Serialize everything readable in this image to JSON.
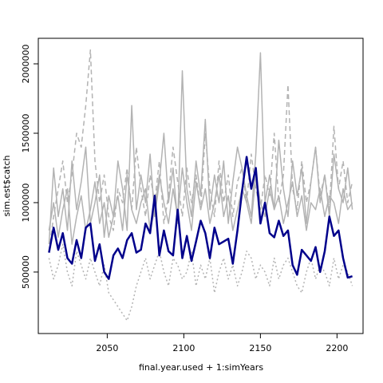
{
  "chart_data": {
    "type": "line",
    "x_label": "final.year.used + 1:simYears",
    "y_label": "sim.est$catch",
    "x": [
      2012,
      2015,
      2018,
      2021,
      2024,
      2027,
      2030,
      2033,
      2036,
      2039,
      2042,
      2045,
      2048,
      2051,
      2054,
      2057,
      2060,
      2063,
      2066,
      2069,
      2072,
      2075,
      2078,
      2081,
      2084,
      2087,
      2090,
      2093,
      2096,
      2099,
      2102,
      2105,
      2108,
      2111,
      2114,
      2117,
      2120,
      2123,
      2126,
      2129,
      2132,
      2135,
      2138,
      2141,
      2144,
      2147,
      2150,
      2153,
      2156,
      2159,
      2162,
      2165,
      2168,
      2171,
      2174,
      2177,
      2180,
      2183,
      2186,
      2189,
      2192,
      2195,
      2198,
      2201,
      2204,
      2207,
      2210
    ],
    "xlim": [
      2005,
      2217
    ],
    "xticks": [
      2050,
      2100,
      2150,
      2200
    ],
    "ylim": [
      57000,
      2184000
    ],
    "yticks": [
      500000,
      1000000,
      1500000,
      2000000
    ],
    "series": [
      {
        "color": "#b3b3b3",
        "dash": "solid",
        "values": [
          700000,
          1250000,
          900000,
          1100000,
          800000,
          1300000,
          950000,
          1150000,
          1400000,
          850000,
          1000000,
          1200000,
          750000,
          1050000,
          900000,
          1300000,
          1100000,
          800000,
          1700000,
          950000,
          1200000,
          1000000,
          1350000,
          900000,
          1150000,
          1500000,
          1000000,
          1250000,
          850000,
          1950000,
          1100000,
          900000,
          1300000,
          1050000,
          1600000,
          950000,
          1200000,
          1000000,
          1300000,
          850000,
          1150000,
          1400000,
          1250000,
          1050000,
          900000,
          1350000,
          2080000,
          1000000,
          1200000,
          950000,
          1450000,
          1100000,
          900000,
          1300000,
          1050000,
          1250000,
          850000,
          1150000,
          1400000,
          1000000,
          1200000,
          900000,
          1350000,
          1100000,
          1000000,
          1250000,
          950000
        ]
      },
      {
        "color": "#b3b3b3",
        "dash": "dashed",
        "values": [
          650000,
          900000,
          1100000,
          1300000,
          1000000,
          1200000,
          1500000,
          1400000,
          1700000,
          2100000,
          1300000,
          1000000,
          1200000,
          900000,
          800000,
          1100000,
          1000000,
          1250000,
          950000,
          1400000,
          1100000,
          900000,
          1200000,
          1000000,
          1300000,
          850000,
          1050000,
          1400000,
          1150000,
          900000,
          1250000,
          1000000,
          1200000,
          950000,
          1500000,
          1100000,
          900000,
          1300000,
          1000000,
          1200000,
          900000,
          1150000,
          1250000,
          1000000,
          1350000,
          1100000,
          950000,
          1200000,
          1050000,
          1500000,
          1000000,
          1200000,
          1850000,
          1100000,
          950000,
          1300000,
          1000000,
          1150000,
          1400000,
          1050000,
          1200000,
          950000,
          1550000,
          1100000,
          1300000,
          1000000,
          1150000
        ]
      },
      {
        "color": "#b3b3b3",
        "dash": "dotted",
        "values": [
          600000,
          450000,
          550000,
          700000,
          500000,
          400000,
          650000,
          550000,
          450000,
          600000,
          500000,
          400000,
          550000,
          350000,
          300000,
          250000,
          200000,
          150000,
          250000,
          400000,
          500000,
          600000,
          450000,
          550000,
          650000,
          500000,
          400000,
          600000,
          550000,
          450000,
          500000,
          650000,
          400000,
          550000,
          450000,
          600000,
          350000,
          500000,
          600000,
          450000,
          550000,
          400000,
          500000,
          650000,
          600000,
          450000,
          550000,
          500000,
          400000,
          600000,
          450000,
          550000,
          600000,
          500000,
          400000,
          350000,
          500000,
          600000,
          450000,
          550000,
          500000,
          400000,
          600000,
          450000,
          550000,
          500000,
          400000
        ]
      },
      {
        "color": "#b3b3b3",
        "dash": "solid",
        "values": [
          800000,
          1000000,
          750000,
          950000,
          1100000,
          700000,
          900000,
          1050000,
          800000,
          950000,
          1150000,
          850000,
          1000000,
          750000,
          900000,
          1050000,
          800000,
          1200000,
          950000,
          850000,
          1000000,
          1100000,
          800000,
          950000,
          1200000,
          1000000,
          850000,
          1100000,
          900000,
          1250000,
          1000000,
          800000,
          1150000,
          950000,
          1100000,
          850000,
          1000000,
          1200000,
          900000,
          1050000,
          800000,
          950000,
          1100000,
          1000000,
          850000,
          1200000,
          1000000,
          900000,
          1100000,
          950000,
          1050000,
          850000,
          1000000,
          1150000,
          900000,
          1050000,
          800000,
          1000000,
          950000,
          1100000,
          900000,
          1050000,
          1000000,
          850000,
          1100000,
          950000,
          1000000
        ]
      },
      {
        "color": "#00008b",
        "dash": "solid",
        "width": 2.5,
        "values": [
          640000,
          820000,
          660000,
          780000,
          600000,
          560000,
          730000,
          600000,
          820000,
          850000,
          580000,
          700000,
          500000,
          450000,
          620000,
          670000,
          600000,
          730000,
          780000,
          640000,
          660000,
          850000,
          780000,
          1050000,
          620000,
          800000,
          650000,
          620000,
          950000,
          600000,
          760000,
          580000,
          720000,
          870000,
          780000,
          600000,
          820000,
          700000,
          720000,
          740000,
          560000,
          800000,
          1080000,
          1330000,
          1100000,
          1250000,
          850000,
          1000000,
          780000,
          750000,
          870000,
          760000,
          800000,
          550000,
          480000,
          660000,
          620000,
          580000,
          680000,
          500000,
          650000,
          900000,
          760000,
          800000,
          600000,
          460000,
          470000
        ]
      }
    ]
  }
}
